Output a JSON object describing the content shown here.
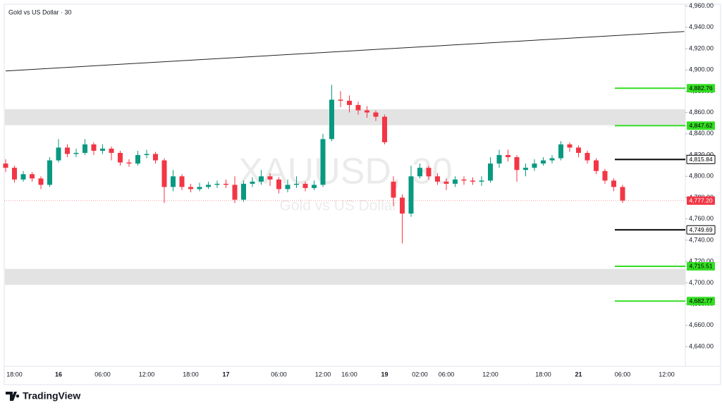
{
  "chart_data": {
    "type": "candlestick",
    "title": "Gold vs US Dollar · 30",
    "watermark": "XAUUSD, 30",
    "watermark_subtitle": "Gold vs US Dollar",
    "logo": "TradingView",
    "up_color": "#089981",
    "down_color": "#f23645",
    "categories": [
      null,
      "18:00",
      null,
      null,
      null,
      null,
      "16",
      null,
      null,
      null,
      null,
      "06:00",
      null,
      null,
      null,
      null,
      "12:00",
      null,
      null,
      null,
      null,
      "18:00",
      null,
      null,
      null,
      "17",
      null,
      null,
      null,
      null,
      null,
      "06:00",
      null,
      null,
      null,
      null,
      "12:00",
      null,
      null,
      "16:00",
      null,
      null,
      null,
      "19",
      null,
      null,
      null,
      "02:00",
      null,
      null,
      "06:00",
      null,
      null,
      null,
      null,
      "12:00",
      null,
      null,
      null,
      null,
      null,
      "18:00",
      null,
      null,
      null,
      "21",
      null,
      null,
      null,
      null,
      "06:00",
      null,
      null,
      null,
      null,
      "12:00",
      null
    ],
    "open": [
      4812,
      4808,
      4797,
      4802,
      4798,
      4792,
      4815,
      4827,
      4821,
      4822,
      4830,
      4824,
      4826,
      4822,
      4813,
      4812,
      4820,
      4821,
      4815,
      4790,
      4800,
      4790,
      4788,
      4790,
      4792,
      4793,
      4792,
      4778,
      4793,
      4795,
      4800,
      4797,
      4788,
      4792,
      4793,
      4789,
      4792,
      4835,
      4872,
      4871,
      4867,
      4862,
      4860,
      4856,
      4795,
      4780,
      4765,
      4800,
      4808,
      4800,
      4795,
      4793,
      4797,
      4796,
      4795,
      4796,
      4812,
      4820,
      4818,
      4806,
      4808,
      4812,
      4815,
      4817,
      4830,
      4827,
      4822,
      4815,
      4805,
      4796,
      4790,
      null,
      null,
      null,
      null,
      null,
      null
    ],
    "high": [
      4816,
      4810,
      4805,
      4804,
      4800,
      4818,
      4835,
      4830,
      4826,
      4835,
      4832,
      4830,
      4828,
      4824,
      4816,
      4824,
      4825,
      4823,
      4817,
      4806,
      4802,
      4793,
      4794,
      4795,
      4796,
      4797,
      4800,
      4796,
      4799,
      4806,
      4803,
      4799,
      4797,
      4800,
      4795,
      4796,
      4840,
      4886,
      4880,
      4876,
      4870,
      4866,
      4862,
      4858,
      4800,
      4783,
      4810,
      4812,
      4810,
      4803,
      4798,
      4800,
      4800,
      4799,
      4800,
      4818,
      4825,
      4825,
      4820,
      4812,
      4816,
      4818,
      4820,
      4833,
      4832,
      4829,
      4824,
      4817,
      4807,
      4798,
      4792,
      null,
      null,
      null,
      null,
      null,
      null
    ],
    "low": [
      4804,
      4794,
      4795,
      4795,
      4788,
      4790,
      4813,
      4818,
      4818,
      4820,
      4820,
      4821,
      4815,
      4810,
      4809,
      4810,
      4817,
      4812,
      4775,
      4786,
      4787,
      4785,
      4786,
      4788,
      4789,
      4789,
      4775,
      4776,
      4790,
      4792,
      4791,
      4784,
      4785,
      4789,
      4786,
      4787,
      4790,
      4833,
      4865,
      4860,
      4858,
      4855,
      4852,
      4830,
      4772,
      4737,
      4762,
      4798,
      4797,
      4792,
      4787,
      4790,
      4792,
      4792,
      4791,
      4794,
      4808,
      4814,
      4795,
      4800,
      4805,
      4810,
      4812,
      4815,
      4823,
      4818,
      4812,
      4802,
      4793,
      4786,
      4775,
      null,
      null,
      null,
      null,
      null,
      null
    ],
    "close": [
      4808,
      4797,
      4802,
      4798,
      4792,
      4815,
      4827,
      4821,
      4822,
      4830,
      4824,
      4826,
      4822,
      4813,
      4812,
      4820,
      4821,
      4815,
      4790,
      4800,
      4790,
      4788,
      4790,
      4792,
      4793,
      4792,
      4778,
      4793,
      4795,
      4800,
      4797,
      4788,
      4792,
      4793,
      4789,
      4792,
      4835,
      4872,
      4871,
      4867,
      4862,
      4860,
      4856,
      4832,
      4780,
      4765,
      4800,
      4808,
      4800,
      4795,
      4793,
      4797,
      4796,
      4795,
      4796,
      4812,
      4820,
      4818,
      4806,
      4808,
      4812,
      4815,
      4817,
      4830,
      4827,
      4822,
      4815,
      4805,
      4796,
      4790,
      4777.2,
      null,
      null,
      null,
      null,
      null,
      null
    ],
    "ylim": [
      4621.5,
      4963
    ],
    "yticks": [
      {
        "value": 4640,
        "label": "4,640.00"
      },
      {
        "value": 4660,
        "label": "4,660.00"
      },
      {
        "value": 4680,
        "label": "4,680.00"
      },
      {
        "value": 4700,
        "label": "4,700.00"
      },
      {
        "value": 4720,
        "label": "4,720.00"
      },
      {
        "value": 4740,
        "label": "4,740.00"
      },
      {
        "value": 4760,
        "label": "4,760.00"
      },
      {
        "value": 4780,
        "label": "4,780.00"
      },
      {
        "value": 4800,
        "label": "4,800.00"
      },
      {
        "value": 4820,
        "label": "4,820.00"
      },
      {
        "value": 4840,
        "label": "4,840.00"
      },
      {
        "value": 4860,
        "label": "4,860.00"
      },
      {
        "value": 4880,
        "label": "4,880.00"
      },
      {
        "value": 4900,
        "label": "4,900.00"
      },
      {
        "value": 4920,
        "label": "4,920.00"
      },
      {
        "value": 4940,
        "label": "4,940.00"
      },
      {
        "value": 4960,
        "label": "4,960.00"
      }
    ],
    "grid": false,
    "zones": [
      [
        4848,
        4863
      ],
      [
        4698,
        4713
      ]
    ],
    "trendline": {
      "start": [
        0,
        4899
      ],
      "end": [
        77,
        4936
      ]
    },
    "levels": [
      {
        "value": 4882.76,
        "label": "4,882.76",
        "color": "#33dd22",
        "style": "green"
      },
      {
        "value": 4847.62,
        "label": "4,847.62",
        "color": "#33dd22",
        "style": "green"
      },
      {
        "value": 4815.84,
        "label": "4,815.84",
        "color": "#000000",
        "style": "black"
      },
      {
        "value": 4777.2,
        "label": "4,777.20",
        "color": "#f23645",
        "style": "current"
      },
      {
        "value": 4749.69,
        "label": "4,749.69",
        "color": "#000000",
        "style": "black"
      },
      {
        "value": 4715.51,
        "label": "4,715.51",
        "color": "#33dd22",
        "style": "green"
      },
      {
        "value": 4682.77,
        "label": "4,682.77",
        "color": "#33dd22",
        "style": "green"
      }
    ]
  }
}
